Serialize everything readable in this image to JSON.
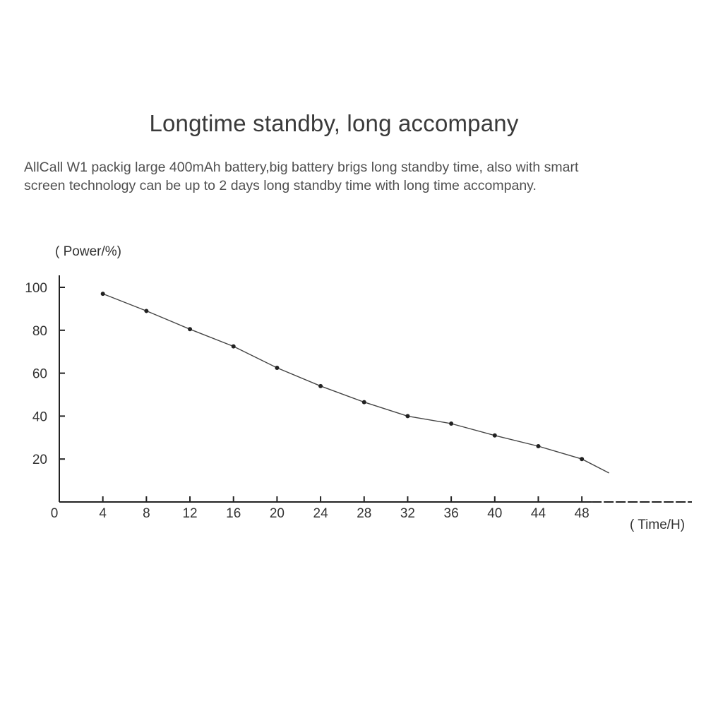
{
  "heading": {
    "title": "Longtime standby, long accompany",
    "description_line1": "AllCall W1 packig large 400mAh battery,big battery brigs long standby time, also with smart",
    "description_line2": "screen technology can be up to 2 days long standby time with long time accompany."
  },
  "chart_data": {
    "type": "line",
    "title": "",
    "xlabel": "( Time/H)",
    "ylabel": "( Power/%)",
    "x": [
      4,
      8,
      12,
      16,
      20,
      24,
      28,
      32,
      36,
      40,
      44,
      48
    ],
    "x_tick_labels": [
      "0",
      "4",
      "8",
      "12",
      "16",
      "20",
      "24",
      "28",
      "32",
      "36",
      "40",
      "44",
      "48"
    ],
    "y_tick_labels": [
      "100",
      "80",
      "60",
      "40",
      "20"
    ],
    "y_ticks": [
      100,
      80,
      60,
      40,
      20
    ],
    "series": [
      {
        "values": [
          97,
          89,
          80.5,
          72.5,
          62.5,
          54,
          46.5,
          40,
          36.5,
          31,
          26,
          20
        ],
        "tail_value": 13.5,
        "tail_x": 50.5
      }
    ],
    "xlim": [
      0,
      59
    ],
    "ylim": [
      0,
      100
    ],
    "grid": false,
    "line_color": "#444444",
    "axis_color": "#222222"
  }
}
